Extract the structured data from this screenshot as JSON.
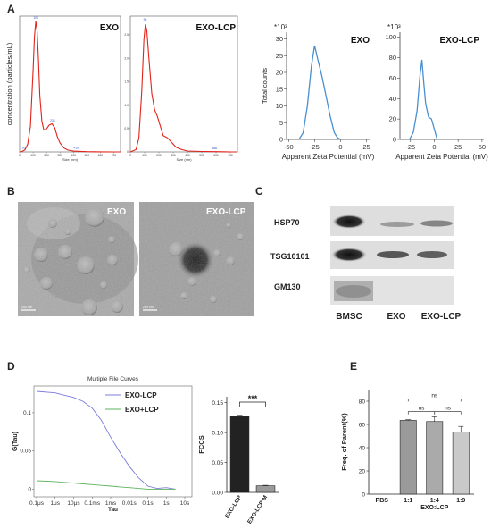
{
  "panels": {
    "A": "A",
    "B": "B",
    "C": "C",
    "D": "D",
    "E": "E"
  },
  "colors": {
    "nta": "#e2231a",
    "zeta": "#4a8fcf",
    "lcp": "#7b7bdc",
    "exo_lcp_green": "#5db35d",
    "bar_dark": "#222222",
    "bar_gray": "#9a9a9a",
    "bar_light": "#c9c9c9"
  },
  "chart_data": [
    {
      "id": "nta_exo",
      "type": "line",
      "panel_title": "EXO",
      "ylabel": "concentration (particles/mL)",
      "xlabel": "Size (nm)",
      "xticks": [
        "0",
        "100",
        "200",
        "300",
        "400",
        "500",
        "600",
        "700"
      ],
      "xlim": [
        0,
        750
      ],
      "ylim": [
        0,
        5.3
      ],
      "x": [
        0,
        20,
        40,
        60,
        80,
        100,
        110,
        120,
        130,
        140,
        150,
        165,
        180,
        200,
        220,
        240,
        260,
        280,
        300,
        330,
        360,
        400,
        450,
        500,
        600,
        700,
        750
      ],
      "series": [
        {
          "values": [
            0,
            0.02,
            0.08,
            0.3,
            1.0,
            3.2,
            4.5,
            5.1,
            4.7,
            3.6,
            2.2,
            1.2,
            0.85,
            0.9,
            1.05,
            1.1,
            0.95,
            0.6,
            0.35,
            0.15,
            0.07,
            0.03,
            0.02,
            0.01,
            0.005,
            0,
            0
          ]
        }
      ],
      "annotations": [
        "100",
        "234",
        "416",
        "26"
      ]
    },
    {
      "id": "nta_exo_lcp",
      "type": "line",
      "panel_title": "EXO-LCP",
      "xlabel": "Size (nm)",
      "xticks": [
        "0",
        "100",
        "200",
        "300",
        "400",
        "500",
        "600",
        "700"
      ],
      "yticks": [
        "0",
        "0.5",
        "1.0",
        "1.5",
        "2.0",
        "2.5"
      ],
      "xlim": [
        0,
        750
      ],
      "ylim": [
        0,
        2.9
      ],
      "x": [
        0,
        40,
        60,
        80,
        95,
        105,
        115,
        130,
        150,
        170,
        190,
        210,
        230,
        260,
        290,
        320,
        360,
        400,
        500,
        600,
        700,
        750
      ],
      "series": [
        {
          "values": [
            0,
            0.05,
            0.3,
            1.3,
            2.4,
            2.72,
            2.6,
            2.0,
            1.25,
            0.9,
            0.75,
            0.55,
            0.35,
            0.3,
            0.2,
            0.1,
            0.05,
            0.02,
            0.01,
            0.005,
            0,
            0
          ]
        }
      ],
      "annotations": [
        "96",
        "586"
      ]
    },
    {
      "id": "zeta_exo",
      "type": "line",
      "panel_title": "EXO",
      "multiplier": "*10³",
      "ylabel": "Total counts",
      "xlabel": "Apparent Zeta Potential (mV)",
      "xticks": [
        "-50",
        "-25",
        "0",
        "25"
      ],
      "yticks": [
        "0",
        "5",
        "10",
        "15",
        "20",
        "25",
        "30"
      ],
      "xlim": [
        -52,
        28
      ],
      "ylim": [
        0,
        32
      ],
      "x": [
        -40,
        -36,
        -32,
        -28,
        -25,
        -22,
        -18,
        -14,
        -10,
        -6,
        -3,
        0
      ],
      "series": [
        {
          "values": [
            0,
            2,
            10,
            22,
            28,
            24,
            19,
            13,
            7,
            2,
            0.5,
            0
          ]
        }
      ]
    },
    {
      "id": "zeta_exo_lcp",
      "type": "line",
      "panel_title": "EXO-LCP",
      "multiplier": "*10³",
      "xlabel": "Apparent Zeta Potential (mV)",
      "xticks": [
        "-25",
        "0",
        "25",
        "50"
      ],
      "yticks": [
        "0",
        "20",
        "40",
        "60",
        "80",
        "100"
      ],
      "xlim": [
        -36,
        52
      ],
      "ylim": [
        0,
        105
      ],
      "x": [
        -26,
        -22,
        -18,
        -15,
        -13,
        -11,
        -9,
        -6,
        -3,
        0,
        3
      ],
      "series": [
        {
          "values": [
            0,
            7,
            28,
            62,
            78,
            55,
            35,
            22,
            20,
            10,
            0
          ]
        }
      ]
    },
    {
      "id": "fcs",
      "type": "line",
      "title": "Multiple File Curves",
      "ylabel": "G(Tau)",
      "xlabel": "Tau",
      "xticks": [
        "0.1μs",
        "1μs",
        "10μs",
        "0.1ms",
        "1ms",
        "0.01s",
        "0.1s",
        "1s",
        "10s"
      ],
      "yticks": [
        "0",
        "0.05",
        "0.1"
      ],
      "ylim": [
        -0.01,
        0.135
      ],
      "x": [
        -7,
        -6,
        -5.5,
        -5,
        -4.5,
        -4,
        -3.5,
        -3,
        -2.5,
        -2,
        -1.5,
        -1,
        -0.5,
        0,
        0.5
      ],
      "series": [
        {
          "name": "EXO-LCP",
          "values": [
            0.128,
            0.126,
            0.123,
            0.12,
            0.115,
            0.106,
            0.09,
            0.068,
            0.048,
            0.03,
            0.015,
            0.004,
            0.001,
            0.002,
            0.0
          ]
        },
        {
          "name": "EXO+LCP",
          "values": [
            0.011,
            0.01,
            0.009,
            0.008,
            0.007,
            0.006,
            0.005,
            0.004,
            0.003,
            0.002,
            0.001,
            0.0,
            0.0,
            0.0,
            0.0
          ]
        }
      ]
    },
    {
      "id": "fccs",
      "type": "bar",
      "ylabel": "FCCS",
      "categories": [
        "EXO-LCP",
        "EXO-LCP M"
      ],
      "values": [
        0.127,
        0.011
      ],
      "yticks": [
        "0.00",
        "0.05",
        "0.10",
        "0.15"
      ],
      "ylim": [
        0,
        0.16
      ],
      "significance": "***"
    },
    {
      "id": "freq_parent",
      "type": "bar",
      "ylabel": "Freq. of Parent(%)",
      "xlabel": "EXO:LCP",
      "categories": [
        "PBS",
        "1:1",
        "1:4",
        "1:9"
      ],
      "values": [
        0,
        63.5,
        62.5,
        53.5
      ],
      "yticks": [
        "0",
        "20",
        "40",
        "60",
        "80"
      ],
      "ylim": [
        0,
        90
      ],
      "significance": [
        "ns",
        "ns",
        "ns"
      ]
    }
  ],
  "tem": {
    "labels": [
      "EXO",
      "EXO-LCP"
    ],
    "scale_bar": "200 nm"
  },
  "western": {
    "proteins": [
      "HSP70",
      "TSG10101",
      "GM130"
    ],
    "lanes": [
      "BMSC",
      "EXO",
      "EXO-LCP"
    ]
  }
}
